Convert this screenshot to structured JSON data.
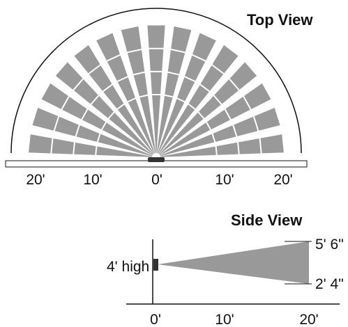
{
  "top_view": {
    "title": "Top View",
    "scale_labels": [
      "20'",
      "10'",
      "0'",
      "10'",
      "20'"
    ],
    "beam_count": 15,
    "zones_per_beam": 4,
    "colors": {
      "beam": "#999999",
      "outline": "#111111",
      "background": "#ffffff"
    }
  },
  "side_view": {
    "title": "Side View",
    "mount_label": "4' high",
    "upper_label": "5' 6\"",
    "lower_label": "2' 4\"",
    "scale_labels": [
      "0'",
      "10'",
      "20'"
    ]
  }
}
